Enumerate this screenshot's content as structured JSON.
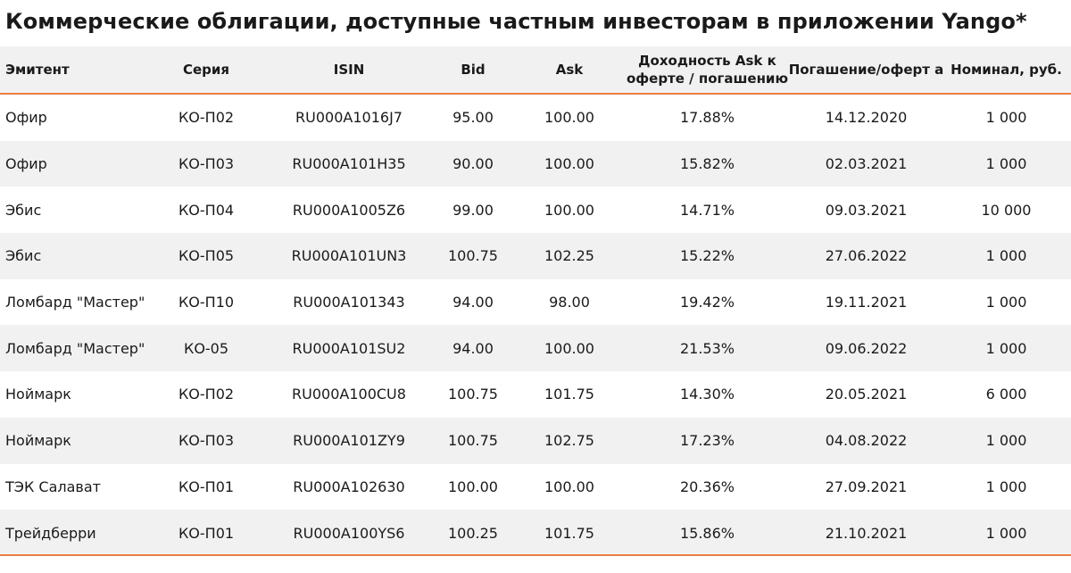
{
  "title": "Коммерческие облигации, доступные частным инвесторам в приложении Yango*",
  "columns": [
    "Эмитент",
    "Серия",
    "ISIN",
    "Bid",
    "Ask",
    "Доходность Ask к оферте / погашению",
    "Погашение/оферт а",
    "Номинал, руб."
  ],
  "rows": [
    [
      "Офир",
      "КО-П02",
      "RU000A1016J7",
      "95.00",
      "100.00",
      "17.88%",
      "14.12.2020",
      "1 000"
    ],
    [
      "Офир",
      "КО-П03",
      "RU000A101H35",
      "90.00",
      "100.00",
      "15.82%",
      "02.03.2021",
      "1 000"
    ],
    [
      "Эбис",
      "КО-П04",
      "RU000A1005Z6",
      "99.00",
      "100.00",
      "14.71%",
      "09.03.2021",
      "10 000"
    ],
    [
      "Эбис",
      "КО-П05",
      "RU000A101UN3",
      "100.75",
      "102.25",
      "15.22%",
      "27.06.2022",
      "1 000"
    ],
    [
      "Ломбард \"Мастер\"",
      "КО-П10",
      "RU000A101343",
      "94.00",
      "98.00",
      "19.42%",
      "19.11.2021",
      "1 000"
    ],
    [
      "Ломбард \"Мастер\"",
      "КО-05",
      "RU000A101SU2",
      "94.00",
      "100.00",
      "21.53%",
      "09.06.2022",
      "1 000"
    ],
    [
      "Ноймарк",
      "КО-П02",
      "RU000A100CU8",
      "100.75",
      "101.75",
      "14.30%",
      "20.05.2021",
      "6 000"
    ],
    [
      "Ноймарк",
      "КО-П03",
      "RU000A101ZY9",
      "100.75",
      "102.75",
      "17.23%",
      "04.08.2022",
      "1 000"
    ],
    [
      "ТЭК Салават",
      "КО-П01",
      "RU000A102630",
      "100.00",
      "100.00",
      "20.36%",
      "27.09.2021",
      "1 000"
    ],
    [
      "Трейдберри",
      "КО-П01",
      "RU000A100YS6",
      "100.25",
      "101.75",
      "15.86%",
      "21.10.2021",
      "1 000"
    ]
  ]
}
